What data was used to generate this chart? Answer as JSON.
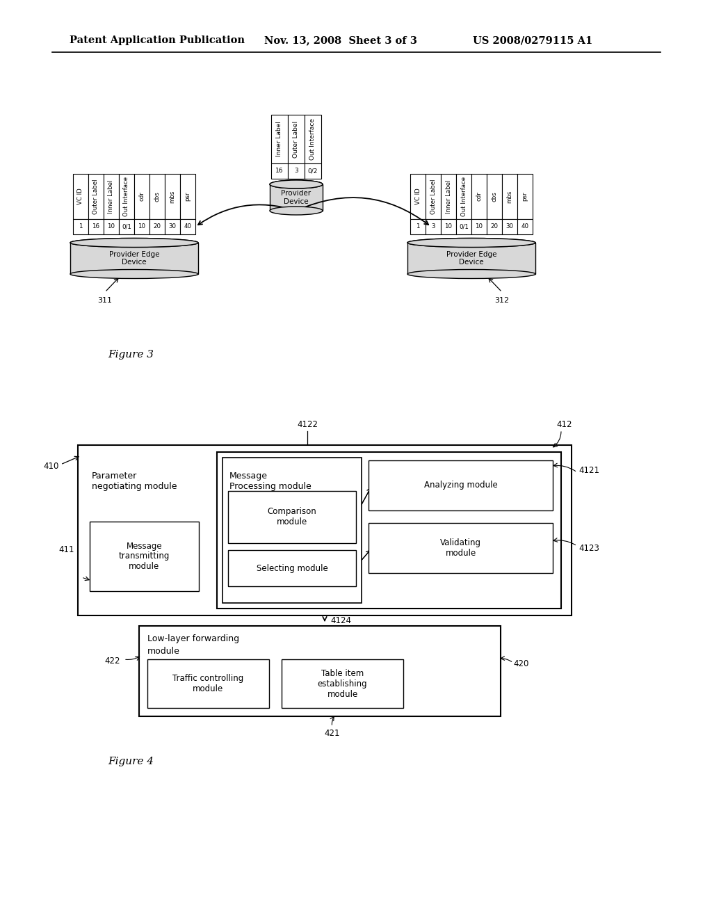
{
  "header_left": "Patent Application Publication",
  "header_mid": "Nov. 13, 2008  Sheet 3 of 3",
  "header_right": "US 2008/0279115 A1",
  "fig3_caption": "Figure 3",
  "fig4_caption": "Figure 4",
  "bg_color": "#ffffff",
  "text_color": "#000000",
  "fig3": {
    "provider_device_cols": [
      "Inner Label",
      "Outer Label",
      "Out Interface"
    ],
    "provider_device_data": [
      "16",
      "3",
      "0/2"
    ],
    "provider_device_label": "Provider\nDevice",
    "left_table_cols": [
      "VC ID",
      "Outer Label",
      "Inner Label",
      "Out Interface",
      "cdr",
      "cbs",
      "mbs",
      "psr"
    ],
    "left_table_data": [
      "1",
      "16",
      "10",
      "0/1",
      "10",
      "20",
      "30",
      "40"
    ],
    "right_table_cols": [
      "VC ID",
      "Outer Label",
      "Inner Label",
      "Out Interface",
      "cdr",
      "cbs",
      "mbs",
      "psr"
    ],
    "right_table_data": [
      "1",
      "3",
      "10",
      "0/1",
      "10",
      "20",
      "30",
      "40"
    ],
    "left_device_label": "Provider Edge\nDevice",
    "left_device_ref": "311",
    "right_device_label": "Provider Edge\nDevice",
    "right_device_ref": "312"
  },
  "fig4": {
    "outer_ref": "410",
    "pnm_label": "Parameter\nnegotiating module",
    "mt_label": "Message\ntransmitting\nmodule",
    "mt_ref": "411",
    "mp_label": "Message\nProcessing module",
    "mp_ref": "4122",
    "comp_label": "Comparison\nmodule",
    "sel_label": "Selecting module",
    "an_label": "Analyzing module",
    "an_ref": "4121",
    "val_label": "Validating\nmodule",
    "val_ref": "4123",
    "rg_ref": "412",
    "low_label1": "Low-layer forwarding",
    "low_label2": "module",
    "low_ref": "422",
    "tc_label": "Traffic controlling\nmodule",
    "ti_label": "Table item\nestablishing\nmodule",
    "low_box_ref": "421",
    "low_outer_ref": "420",
    "arrow_ref": "4124"
  }
}
